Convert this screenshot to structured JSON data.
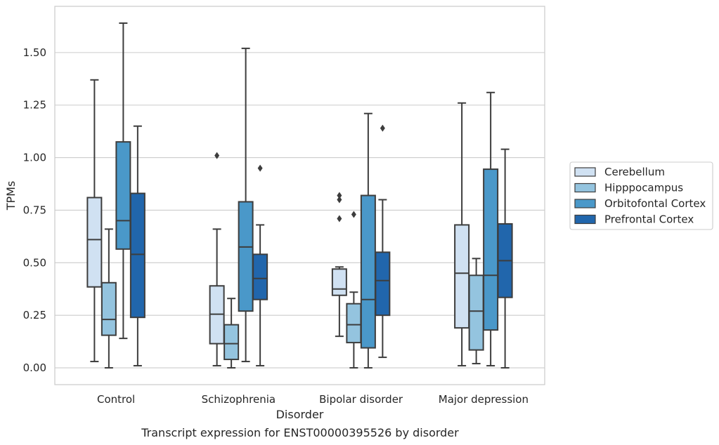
{
  "chart_data": {
    "type": "box",
    "title": "",
    "caption": "Transcript expression for ENST00000395526 by disorder",
    "xlabel": "Disorder",
    "ylabel": "TPMs",
    "ylim": [
      -0.08,
      1.72
    ],
    "yticks": [
      0.0,
      0.25,
      0.5,
      0.75,
      1.0,
      1.25,
      1.5
    ],
    "ytick_labels": [
      "0.00",
      "0.25",
      "0.50",
      "0.75",
      "1.00",
      "1.25",
      "1.50"
    ],
    "grid": "horizontal",
    "legend_position": "outside-right",
    "categories": [
      "Control",
      "Schizophrenia",
      "Bipolar disorder",
      "Major depression"
    ],
    "series": [
      {
        "name": "Cerebellum",
        "color": "#d0e1f2",
        "boxes": [
          {
            "whisker_low": 0.03,
            "q1": 0.385,
            "median": 0.61,
            "q3": 0.81,
            "whisker_high": 1.37,
            "outliers": []
          },
          {
            "whisker_low": 0.01,
            "q1": 0.115,
            "median": 0.255,
            "q3": 0.39,
            "whisker_high": 0.66,
            "outliers": [
              1.01
            ]
          },
          {
            "whisker_low": 0.15,
            "q1": 0.345,
            "median": 0.375,
            "q3": 0.47,
            "whisker_high": 0.48,
            "outliers": [
              0.71,
              0.8,
              0.82
            ]
          },
          {
            "whisker_low": 0.01,
            "q1": 0.19,
            "median": 0.45,
            "q3": 0.68,
            "whisker_high": 1.26,
            "outliers": []
          }
        ]
      },
      {
        "name": "Hipppocampus",
        "color": "#94c4df",
        "boxes": [
          {
            "whisker_low": 0.0,
            "q1": 0.155,
            "median": 0.23,
            "q3": 0.405,
            "whisker_high": 0.66,
            "outliers": []
          },
          {
            "whisker_low": 0.0,
            "q1": 0.04,
            "median": 0.115,
            "q3": 0.205,
            "whisker_high": 0.33,
            "outliers": []
          },
          {
            "whisker_low": 0.0,
            "q1": 0.12,
            "median": 0.205,
            "q3": 0.305,
            "whisker_high": 0.36,
            "outliers": [
              0.73
            ]
          },
          {
            "whisker_low": 0.02,
            "q1": 0.085,
            "median": 0.27,
            "q3": 0.44,
            "whisker_high": 0.52,
            "outliers": []
          }
        ]
      },
      {
        "name": "Orbitofontal Cortex",
        "color": "#4a98c9",
        "boxes": [
          {
            "whisker_low": 0.14,
            "q1": 0.565,
            "median": 0.7,
            "q3": 1.075,
            "whisker_high": 1.64,
            "outliers": []
          },
          {
            "whisker_low": 0.03,
            "q1": 0.27,
            "median": 0.575,
            "q3": 0.79,
            "whisker_high": 1.52,
            "outliers": []
          },
          {
            "whisker_low": 0.0,
            "q1": 0.095,
            "median": 0.325,
            "q3": 0.82,
            "whisker_high": 1.21,
            "outliers": []
          },
          {
            "whisker_low": 0.01,
            "q1": 0.18,
            "median": 0.44,
            "q3": 0.945,
            "whisker_high": 1.31,
            "outliers": []
          }
        ]
      },
      {
        "name": "Prefrontal Cortex",
        "color": "#2166ac",
        "boxes": [
          {
            "whisker_low": 0.01,
            "q1": 0.24,
            "median": 0.54,
            "q3": 0.83,
            "whisker_high": 1.15,
            "outliers": []
          },
          {
            "whisker_low": 0.01,
            "q1": 0.325,
            "median": 0.425,
            "q3": 0.54,
            "whisker_high": 0.68,
            "outliers": [
              0.95
            ]
          },
          {
            "whisker_low": 0.05,
            "q1": 0.25,
            "median": 0.415,
            "q3": 0.55,
            "whisker_high": 0.8,
            "outliers": [
              1.14
            ]
          },
          {
            "whisker_low": 0.0,
            "q1": 0.335,
            "median": 0.51,
            "q3": 0.685,
            "whisker_high": 1.04,
            "outliers": []
          }
        ]
      }
    ]
  }
}
